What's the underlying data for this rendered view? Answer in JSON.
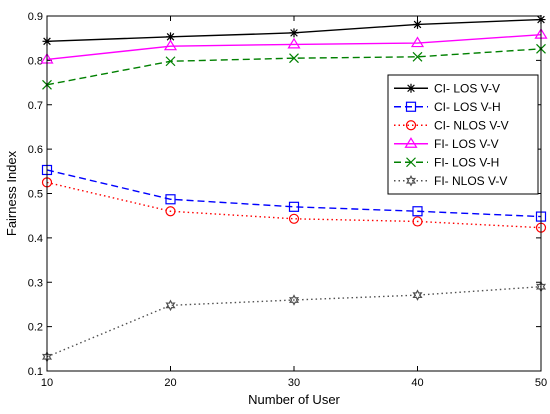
{
  "chart_data": {
    "type": "line",
    "xlabel": "Number of User",
    "ylabel": "Fairness Index",
    "x": [
      10,
      20,
      30,
      40,
      50
    ],
    "xlim": [
      10,
      50
    ],
    "ylim": [
      0.1,
      0.9
    ],
    "xticks": [
      "10",
      "20",
      "30",
      "40",
      "50"
    ],
    "yticks": [
      "0.1",
      "0.2",
      "0.3",
      "0.4",
      "0.5",
      "0.6",
      "0.7",
      "0.8",
      "0.9"
    ],
    "grid": false,
    "legend_position": "right",
    "series": [
      {
        "name": "CI- LOS V-V",
        "values": [
          0.843,
          0.853,
          0.862,
          0.881,
          0.892
        ],
        "color": "#000000",
        "dash": "solid",
        "marker": "asterisk"
      },
      {
        "name": "CI- LOS V-H",
        "values": [
          0.553,
          0.487,
          0.47,
          0.46,
          0.448
        ],
        "color": "#0000ff",
        "dash": "dashed",
        "marker": "square"
      },
      {
        "name": "CI- NLOS V-V",
        "values": [
          0.525,
          0.46,
          0.443,
          0.437,
          0.423
        ],
        "color": "#ff0000",
        "dash": "dotted",
        "marker": "circle"
      },
      {
        "name": "FI- LOS V-V",
        "values": [
          0.802,
          0.832,
          0.836,
          0.839,
          0.858
        ],
        "color": "#ff00ff",
        "dash": "solid",
        "marker": "triangle"
      },
      {
        "name": "FI- LOS V-H",
        "values": [
          0.745,
          0.798,
          0.805,
          0.808,
          0.826
        ],
        "color": "#008000",
        "dash": "dashed",
        "marker": "x"
      },
      {
        "name": "FI- NLOS V-V",
        "values": [
          0.132,
          0.248,
          0.26,
          0.271,
          0.29
        ],
        "color": "#505050",
        "dash": "dotted",
        "marker": "hexagram"
      }
    ]
  }
}
